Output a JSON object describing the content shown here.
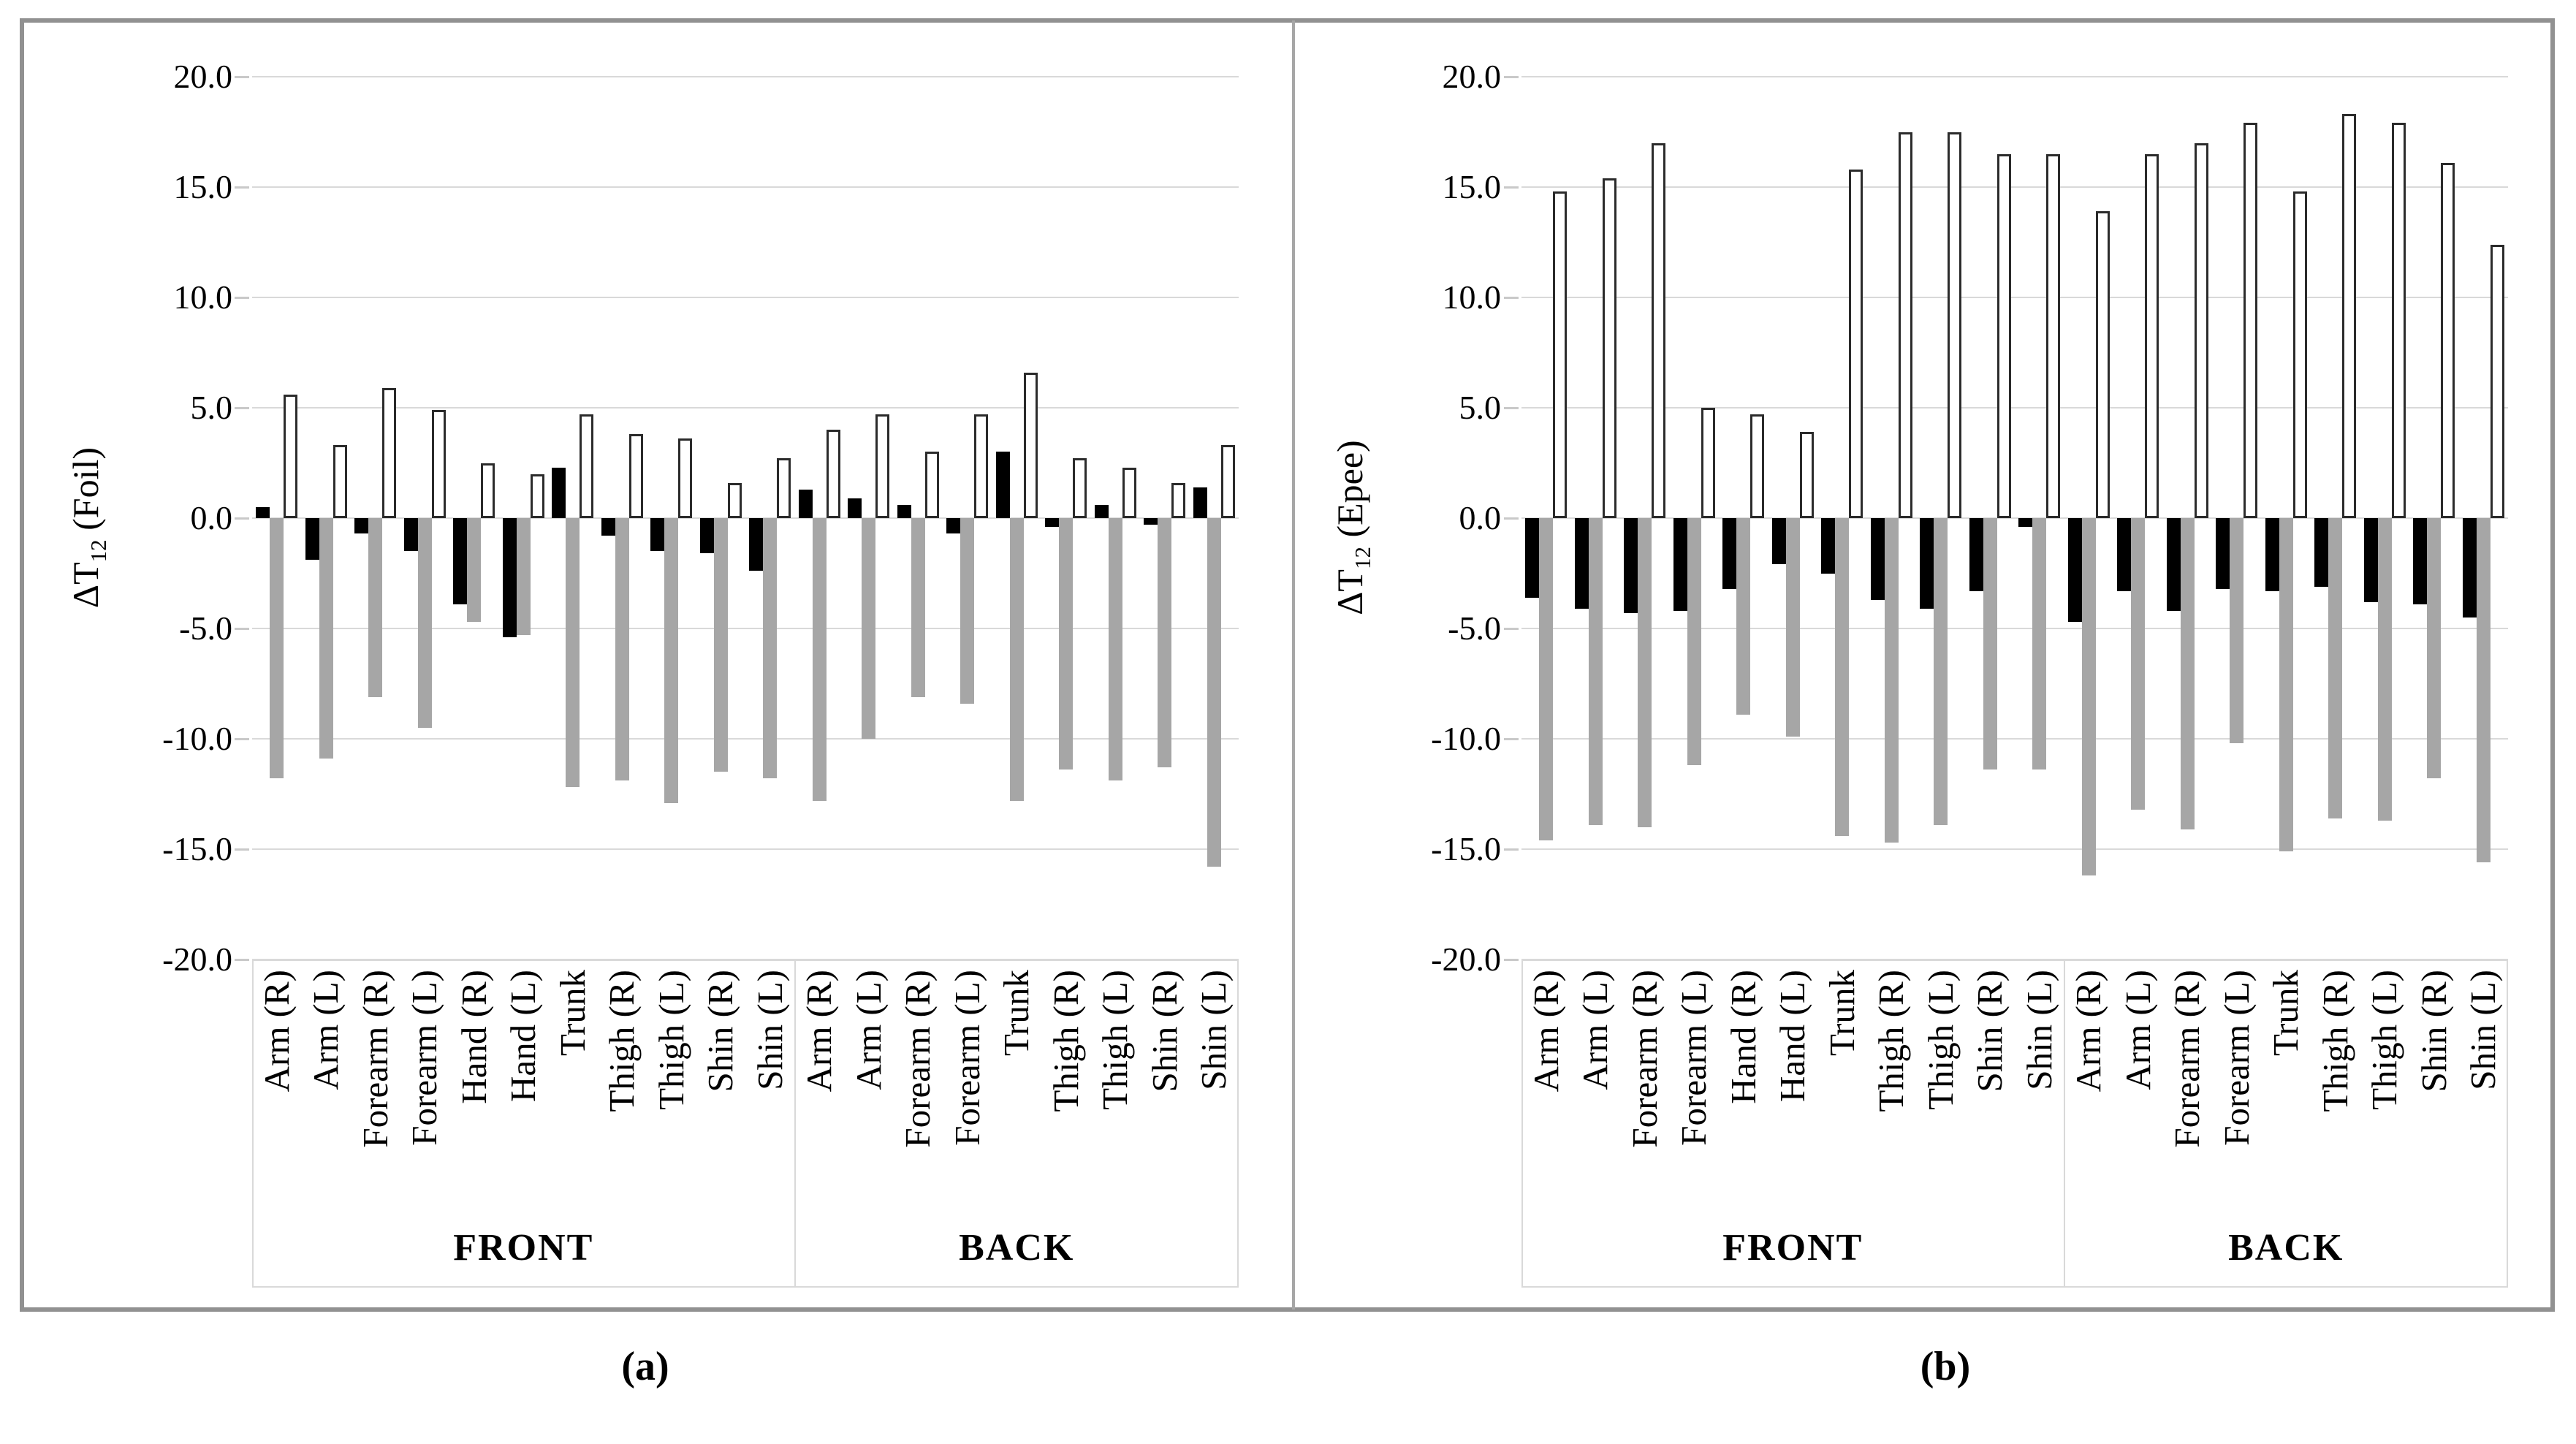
{
  "figure": {
    "background": "#ffffff",
    "border_color": "#919191",
    "panel_divider_color": "#a6a6a6",
    "gridline_color": "#d9d9d9",
    "tick_color": "#c9c9c9",
    "series_colors": {
      "black": "#000000",
      "gray": "#a6a6a6",
      "white_fill": "#ffffff",
      "white_stroke": "#2b2b2b"
    },
    "y_axis": {
      "min": -20,
      "max": 20,
      "step": 5,
      "tick_labels": [
        "20.0",
        "15.0",
        "10.0",
        "5.0",
        "0.0",
        "-5.0",
        "-10.0",
        "-15.0",
        "-20.0"
      ]
    },
    "captions": [
      {
        "open": "(",
        "letter": "a",
        "close": ")"
      },
      {
        "open": "(",
        "letter": "b",
        "close": ")"
      }
    ]
  },
  "chart_data": [
    {
      "type": "bar",
      "panel": "a",
      "ylabel": {
        "prefix": "ΔT",
        "sub": "12",
        "suffix": " (Foil)"
      },
      "ylim": [
        -20,
        20
      ],
      "grid": true,
      "legend": "none",
      "series_names": [
        "black",
        "gray",
        "white"
      ],
      "sections": [
        {
          "label": "FRONT",
          "categories": [
            {
              "label": "Arm (R)",
              "black": 0.5,
              "gray": -11.8,
              "white": 5.6
            },
            {
              "label": "Arm (L)",
              "black": -1.9,
              "gray": -10.9,
              "white": 3.3
            },
            {
              "label": "Forearm (R)",
              "black": -0.7,
              "gray": -8.1,
              "white": 5.9
            },
            {
              "label": "Forearm (L)",
              "black": -1.5,
              "gray": -9.5,
              "white": 4.9
            },
            {
              "label": "Hand (R)",
              "black": -3.9,
              "gray": -4.7,
              "white": 2.5
            },
            {
              "label": "Hand (L)",
              "black": -5.4,
              "gray": -5.3,
              "white": 2.0
            },
            {
              "label": "Trunk",
              "black": 2.3,
              "gray": -12.2,
              "white": 4.7
            },
            {
              "label": "Thigh (R)",
              "black": -0.8,
              "gray": -11.9,
              "white": 3.8
            },
            {
              "label": "Thigh (L)",
              "black": -1.5,
              "gray": -12.9,
              "white": 3.6
            },
            {
              "label": "Shin (R)",
              "black": -1.6,
              "gray": -11.5,
              "white": 1.6
            },
            {
              "label": "Shin (L)",
              "black": -2.4,
              "gray": -11.8,
              "white": 2.7
            }
          ]
        },
        {
          "label": "BACK",
          "categories": [
            {
              "label": "Arm (R)",
              "black": 1.3,
              "gray": -12.8,
              "white": 4.0
            },
            {
              "label": "Arm (L)",
              "black": 0.9,
              "gray": -10.0,
              "white": 4.7
            },
            {
              "label": "Forearm (R)",
              "black": 0.6,
              "gray": -8.1,
              "white": 3.0
            },
            {
              "label": "Forearm (L)",
              "black": -0.7,
              "gray": -8.4,
              "white": 4.7
            },
            {
              "label": "Trunk",
              "black": 3.0,
              "gray": -12.8,
              "white": 6.6
            },
            {
              "label": "Thigh (R)",
              "black": -0.4,
              "gray": -11.4,
              "white": 2.7
            },
            {
              "label": "Thigh (L)",
              "black": 0.6,
              "gray": -11.9,
              "white": 2.3
            },
            {
              "label": "Shin (R)",
              "black": -0.3,
              "gray": -11.3,
              "white": 1.6
            },
            {
              "label": "Shin (L)",
              "black": 1.4,
              "gray": -15.8,
              "white": 3.3
            }
          ]
        }
      ]
    },
    {
      "type": "bar",
      "panel": "b",
      "ylabel": {
        "prefix": "ΔT",
        "sub": "12",
        "suffix": " (Epee)"
      },
      "ylim": [
        -20,
        20
      ],
      "grid": true,
      "legend": "none",
      "series_names": [
        "black",
        "gray",
        "white"
      ],
      "sections": [
        {
          "label": "FRONT",
          "categories": [
            {
              "label": "Arm (R)",
              "black": -3.6,
              "gray": -14.6,
              "white": 14.8
            },
            {
              "label": "Arm (L)",
              "black": -4.1,
              "gray": -13.9,
              "white": 15.4
            },
            {
              "label": "Forearm (R)",
              "black": -4.3,
              "gray": -14.0,
              "white": 17.0
            },
            {
              "label": "Forearm (L)",
              "black": -4.2,
              "gray": -11.2,
              "white": 5.0
            },
            {
              "label": "Hand (R)",
              "black": -3.2,
              "gray": -8.9,
              "white": 4.7
            },
            {
              "label": "Hand (L)",
              "black": -2.1,
              "gray": -9.9,
              "white": 3.9
            },
            {
              "label": "Trunk",
              "black": -2.5,
              "gray": -14.4,
              "white": 15.8
            },
            {
              "label": "Thigh (R)",
              "black": -3.7,
              "gray": -14.7,
              "white": 17.5
            },
            {
              "label": "Thigh (L)",
              "black": -4.1,
              "gray": -13.9,
              "white": 17.5
            },
            {
              "label": "Shin (R)",
              "black": -3.3,
              "gray": -11.4,
              "white": 16.5
            },
            {
              "label": "Shin (L)",
              "black": -0.4,
              "gray": -11.4,
              "white": 16.5
            }
          ]
        },
        {
          "label": "BACK",
          "categories": [
            {
              "label": "Arm (R)",
              "black": -4.7,
              "gray": -16.2,
              "white": 13.9
            },
            {
              "label": "Arm (L)",
              "black": -3.3,
              "gray": -13.2,
              "white": 16.5
            },
            {
              "label": "Forearm (R)",
              "black": -4.2,
              "gray": -14.1,
              "white": 17.0
            },
            {
              "label": "Forearm (L)",
              "black": -3.2,
              "gray": -10.2,
              "white": 17.9
            },
            {
              "label": "Trunk",
              "black": -3.3,
              "gray": -15.1,
              "white": 14.8
            },
            {
              "label": "Thigh (R)",
              "black": -3.1,
              "gray": -13.6,
              "white": 18.3
            },
            {
              "label": "Thigh (L)",
              "black": -3.8,
              "gray": -13.7,
              "white": 17.9
            },
            {
              "label": "Shin (R)",
              "black": -3.9,
              "gray": -11.8,
              "white": 16.1
            },
            {
              "label": "Shin (L)",
              "black": -4.5,
              "gray": -15.6,
              "white": 12.4
            }
          ]
        }
      ]
    }
  ]
}
